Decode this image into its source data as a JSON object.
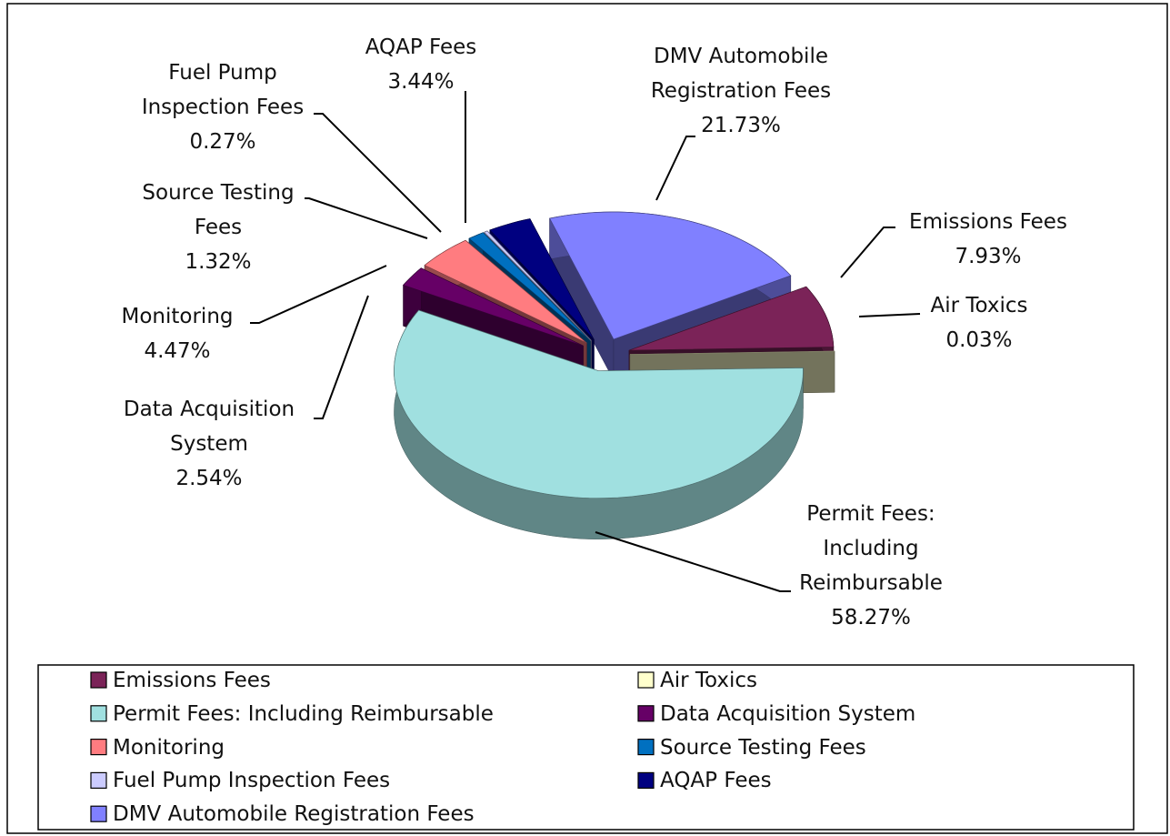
{
  "chart_data": {
    "type": "pie",
    "categories": [
      "Emissions Fees",
      "Air Toxics",
      "Permit Fees: Including Reimbursable",
      "Data Acquisition System",
      "Monitoring",
      "Source Testing Fees",
      "Fuel Pump Inspection Fees",
      "AQAP Fees",
      "DMV Automobile Registration Fees"
    ],
    "values": [
      7.93,
      0.03,
      58.27,
      2.54,
      4.47,
      1.32,
      0.27,
      3.44,
      21.73
    ],
    "value_labels": [
      "7.93%",
      "0.03%",
      "58.27%",
      "2.54%",
      "4.47%",
      "1.32%",
      "0.27%",
      "3.44%",
      "21.73%"
    ],
    "colors": [
      "#7b2358",
      "#ffffcc",
      "#a0e0e0",
      "#660066",
      "#ff7c80",
      "#0070c0",
      "#ccccff",
      "#000080",
      "#8080ff"
    ],
    "legend": "bottom"
  }
}
